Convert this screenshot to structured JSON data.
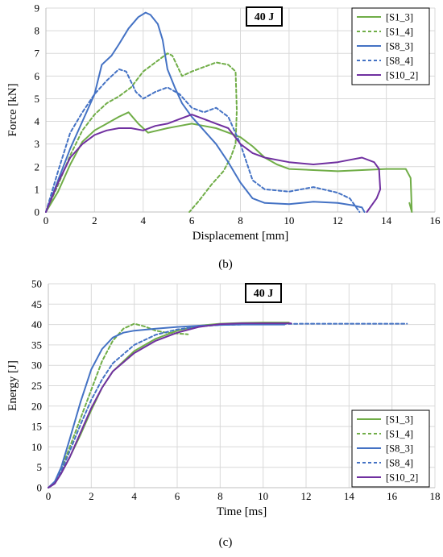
{
  "chart_data": [
    {
      "type": "line",
      "panel_label": "(b)",
      "annotation": "40 J",
      "xlabel": "Displacement [mm]",
      "ylabel": "Force [kN]",
      "xlim": [
        0,
        16
      ],
      "ylim": [
        0,
        9
      ],
      "xticks": [
        0,
        2,
        4,
        6,
        8,
        10,
        12,
        14,
        16
      ],
      "yticks": [
        0,
        1,
        2,
        3,
        4,
        5,
        6,
        7,
        8,
        9
      ],
      "grid": true,
      "legend_position": "top-right",
      "series": [
        {
          "name": "[S1_3]",
          "color": "#70ad47",
          "dash": "solid",
          "points": [
            [
              0,
              0
            ],
            [
              0.5,
              0.9
            ],
            [
              1,
              2.1
            ],
            [
              1.5,
              3.1
            ],
            [
              2,
              3.6
            ],
            [
              2.5,
              3.9
            ],
            [
              3,
              4.2
            ],
            [
              3.4,
              4.4
            ],
            [
              3.8,
              3.9
            ],
            [
              4.2,
              3.5
            ],
            [
              4.6,
              3.6
            ],
            [
              5,
              3.7
            ],
            [
              5.5,
              3.8
            ],
            [
              6,
              3.9
            ],
            [
              6.5,
              3.8
            ],
            [
              7,
              3.7
            ],
            [
              7.5,
              3.5
            ],
            [
              8,
              3.3
            ],
            [
              8.5,
              2.9
            ],
            [
              9,
              2.4
            ],
            [
              9.5,
              2.1
            ],
            [
              10,
              1.9
            ],
            [
              11,
              1.85
            ],
            [
              12,
              1.8
            ],
            [
              13,
              1.85
            ],
            [
              14,
              1.9
            ],
            [
              14.8,
              1.9
            ],
            [
              15,
              1.5
            ],
            [
              15.05,
              0
            ],
            [
              14.95,
              0.4
            ]
          ]
        },
        {
          "name": "[S1_4]",
          "color": "#70ad47",
          "dash": "dashed",
          "points": [
            [
              0,
              0
            ],
            [
              0.5,
              1.2
            ],
            [
              1,
              2.5
            ],
            [
              1.5,
              3.6
            ],
            [
              2,
              4.3
            ],
            [
              2.5,
              4.8
            ],
            [
              3,
              5.1
            ],
            [
              3.5,
              5.5
            ],
            [
              4,
              6.2
            ],
            [
              4.5,
              6.6
            ],
            [
              5,
              7.0
            ],
            [
              5.2,
              6.9
            ],
            [
              5.6,
              6.0
            ],
            [
              6,
              6.2
            ],
            [
              6.5,
              6.4
            ],
            [
              7,
              6.6
            ],
            [
              7.5,
              6.5
            ],
            [
              7.8,
              6.2
            ],
            [
              7.85,
              4.5
            ],
            [
              7.8,
              3.0
            ],
            [
              7.6,
              2.4
            ],
            [
              7.3,
              1.8
            ],
            [
              6.8,
              1.2
            ],
            [
              6.3,
              0.5
            ],
            [
              5.9,
              0
            ]
          ]
        },
        {
          "name": "[S8_3]",
          "color": "#4472c4",
          "dash": "solid",
          "points": [
            [
              0,
              0
            ],
            [
              0.5,
              1.4
            ],
            [
              1,
              2.8
            ],
            [
              1.5,
              4.0
            ],
            [
              2,
              5.2
            ],
            [
              2.3,
              6.5
            ],
            [
              2.7,
              6.9
            ],
            [
              3,
              7.4
            ],
            [
              3.4,
              8.1
            ],
            [
              3.8,
              8.6
            ],
            [
              4.1,
              8.8
            ],
            [
              4.3,
              8.7
            ],
            [
              4.6,
              8.3
            ],
            [
              4.8,
              7.6
            ],
            [
              5,
              6.3
            ],
            [
              5.3,
              5.5
            ],
            [
              5.6,
              4.8
            ],
            [
              6,
              4.2
            ],
            [
              6.5,
              3.6
            ],
            [
              7,
              3.0
            ],
            [
              7.5,
              2.2
            ],
            [
              8,
              1.3
            ],
            [
              8.5,
              0.6
            ],
            [
              9,
              0.4
            ],
            [
              10,
              0.35
            ],
            [
              11,
              0.45
            ],
            [
              12,
              0.4
            ],
            [
              12.6,
              0.3
            ],
            [
              13,
              0.2
            ],
            [
              13.1,
              0
            ]
          ]
        },
        {
          "name": "[S8_4]",
          "color": "#4472c4",
          "dash": "dashed",
          "points": [
            [
              0,
              0
            ],
            [
              0.5,
              1.8
            ],
            [
              1,
              3.5
            ],
            [
              1.5,
              4.4
            ],
            [
              2,
              5.2
            ],
            [
              2.5,
              5.8
            ],
            [
              3,
              6.3
            ],
            [
              3.3,
              6.2
            ],
            [
              3.7,
              5.3
            ],
            [
              4,
              5.0
            ],
            [
              4.5,
              5.3
            ],
            [
              5,
              5.5
            ],
            [
              5.5,
              5.2
            ],
            [
              6,
              4.6
            ],
            [
              6.5,
              4.4
            ],
            [
              7,
              4.6
            ],
            [
              7.5,
              4.2
            ],
            [
              8,
              3.0
            ],
            [
              8.5,
              1.4
            ],
            [
              9,
              1.0
            ],
            [
              10,
              0.9
            ],
            [
              11,
              1.1
            ],
            [
              12,
              0.85
            ],
            [
              12.5,
              0.6
            ],
            [
              12.9,
              0
            ]
          ]
        },
        {
          "name": "[S10_2]",
          "color": "#7030a0",
          "dash": "solid",
          "points": [
            [
              0,
              0
            ],
            [
              0.5,
              1.3
            ],
            [
              1,
              2.4
            ],
            [
              1.5,
              3.0
            ],
            [
              2,
              3.4
            ],
            [
              2.5,
              3.6
            ],
            [
              3,
              3.7
            ],
            [
              3.5,
              3.7
            ],
            [
              4,
              3.6
            ],
            [
              4.5,
              3.8
            ],
            [
              5,
              3.9
            ],
            [
              5.5,
              4.1
            ],
            [
              6,
              4.3
            ],
            [
              6.5,
              4.1
            ],
            [
              7,
              3.9
            ],
            [
              7.5,
              3.7
            ],
            [
              8,
              3.0
            ],
            [
              8.5,
              2.6
            ],
            [
              9,
              2.4
            ],
            [
              10,
              2.2
            ],
            [
              11,
              2.1
            ],
            [
              12,
              2.2
            ],
            [
              12.5,
              2.3
            ],
            [
              13,
              2.4
            ],
            [
              13.5,
              2.2
            ],
            [
              13.7,
              1.9
            ],
            [
              13.75,
              1.0
            ],
            [
              13.6,
              0.6
            ],
            [
              13.2,
              0
            ]
          ]
        }
      ]
    },
    {
      "type": "line",
      "panel_label": "(c)",
      "annotation": "40 J",
      "xlabel": "Time [ms]",
      "ylabel": "Energy [J]",
      "xlim": [
        0,
        18
      ],
      "ylim": [
        0,
        50
      ],
      "xticks": [
        0,
        2,
        4,
        6,
        8,
        10,
        12,
        14,
        16,
        18
      ],
      "yticks": [
        0,
        5,
        10,
        15,
        20,
        25,
        30,
        35,
        40,
        45,
        50
      ],
      "grid": true,
      "legend_position": "bottom-right",
      "series": [
        {
          "name": "[S1_3]",
          "color": "#70ad47",
          "dash": "solid",
          "points": [
            [
              0,
              0
            ],
            [
              0.3,
              1
            ],
            [
              0.6,
              3.5
            ],
            [
              1,
              7.5
            ],
            [
              1.5,
              13
            ],
            [
              2,
              19
            ],
            [
              2.5,
              24.5
            ],
            [
              3,
              28.5
            ],
            [
              4,
              33.5
            ],
            [
              5,
              36.5
            ],
            [
              6,
              38.5
            ],
            [
              7,
              39.7
            ],
            [
              8,
              40.2
            ],
            [
              9,
              40.4
            ],
            [
              10,
              40.5
            ],
            [
              11.2,
              40.5
            ]
          ]
        },
        {
          "name": "[S1_4]",
          "color": "#70ad47",
          "dash": "dashed",
          "points": [
            [
              0,
              0
            ],
            [
              0.3,
              1.2
            ],
            [
              0.6,
              4.5
            ],
            [
              1,
              10
            ],
            [
              1.5,
              17
            ],
            [
              2,
              24
            ],
            [
              2.5,
              31
            ],
            [
              3,
              36
            ],
            [
              3.5,
              39
            ],
            [
              4,
              40.2
            ],
            [
              4.5,
              39.5
            ],
            [
              5,
              38.5
            ],
            [
              5.5,
              38
            ],
            [
              6,
              37.8
            ],
            [
              6.5,
              37.6
            ]
          ]
        },
        {
          "name": "[S8_3]",
          "color": "#4472c4",
          "dash": "solid",
          "points": [
            [
              0,
              0
            ],
            [
              0.3,
              1.5
            ],
            [
              0.6,
              5
            ],
            [
              1,
              12
            ],
            [
              1.5,
              21
            ],
            [
              2,
              29
            ],
            [
              2.5,
              34
            ],
            [
              3,
              36.8
            ],
            [
              3.5,
              38
            ],
            [
              4,
              38.5
            ],
            [
              5,
              39
            ],
            [
              6,
              39.4
            ],
            [
              7,
              39.7
            ],
            [
              8,
              39.9
            ],
            [
              9,
              40
            ],
            [
              10,
              40
            ],
            [
              11,
              40
            ]
          ]
        },
        {
          "name": "[S8_4]",
          "color": "#4472c4",
          "dash": "dashed",
          "points": [
            [
              0,
              0
            ],
            [
              0.3,
              1
            ],
            [
              0.6,
              4
            ],
            [
              1,
              9
            ],
            [
              1.5,
              15.5
            ],
            [
              2,
              21.5
            ],
            [
              2.5,
              26.5
            ],
            [
              3,
              30.5
            ],
            [
              4,
              35
            ],
            [
              5,
              37.5
            ],
            [
              6,
              38.8
            ],
            [
              7,
              39.5
            ],
            [
              8,
              39.9
            ],
            [
              10,
              40.1
            ],
            [
              12,
              40.2
            ],
            [
              14,
              40.2
            ],
            [
              16.7,
              40.2
            ]
          ]
        },
        {
          "name": "[S10_2]",
          "color": "#7030a0",
          "dash": "solid",
          "points": [
            [
              0,
              0
            ],
            [
              0.3,
              1
            ],
            [
              0.6,
              3.5
            ],
            [
              1,
              7.5
            ],
            [
              1.5,
              13.5
            ],
            [
              2,
              19.5
            ],
            [
              2.5,
              24.5
            ],
            [
              3,
              28.5
            ],
            [
              4,
              33
            ],
            [
              5,
              36
            ],
            [
              6,
              38
            ],
            [
              7,
              39.4
            ],
            [
              8,
              40.1
            ],
            [
              9,
              40.3
            ],
            [
              10,
              40.3
            ],
            [
              11.3,
              40.3
            ]
          ]
        }
      ]
    }
  ]
}
